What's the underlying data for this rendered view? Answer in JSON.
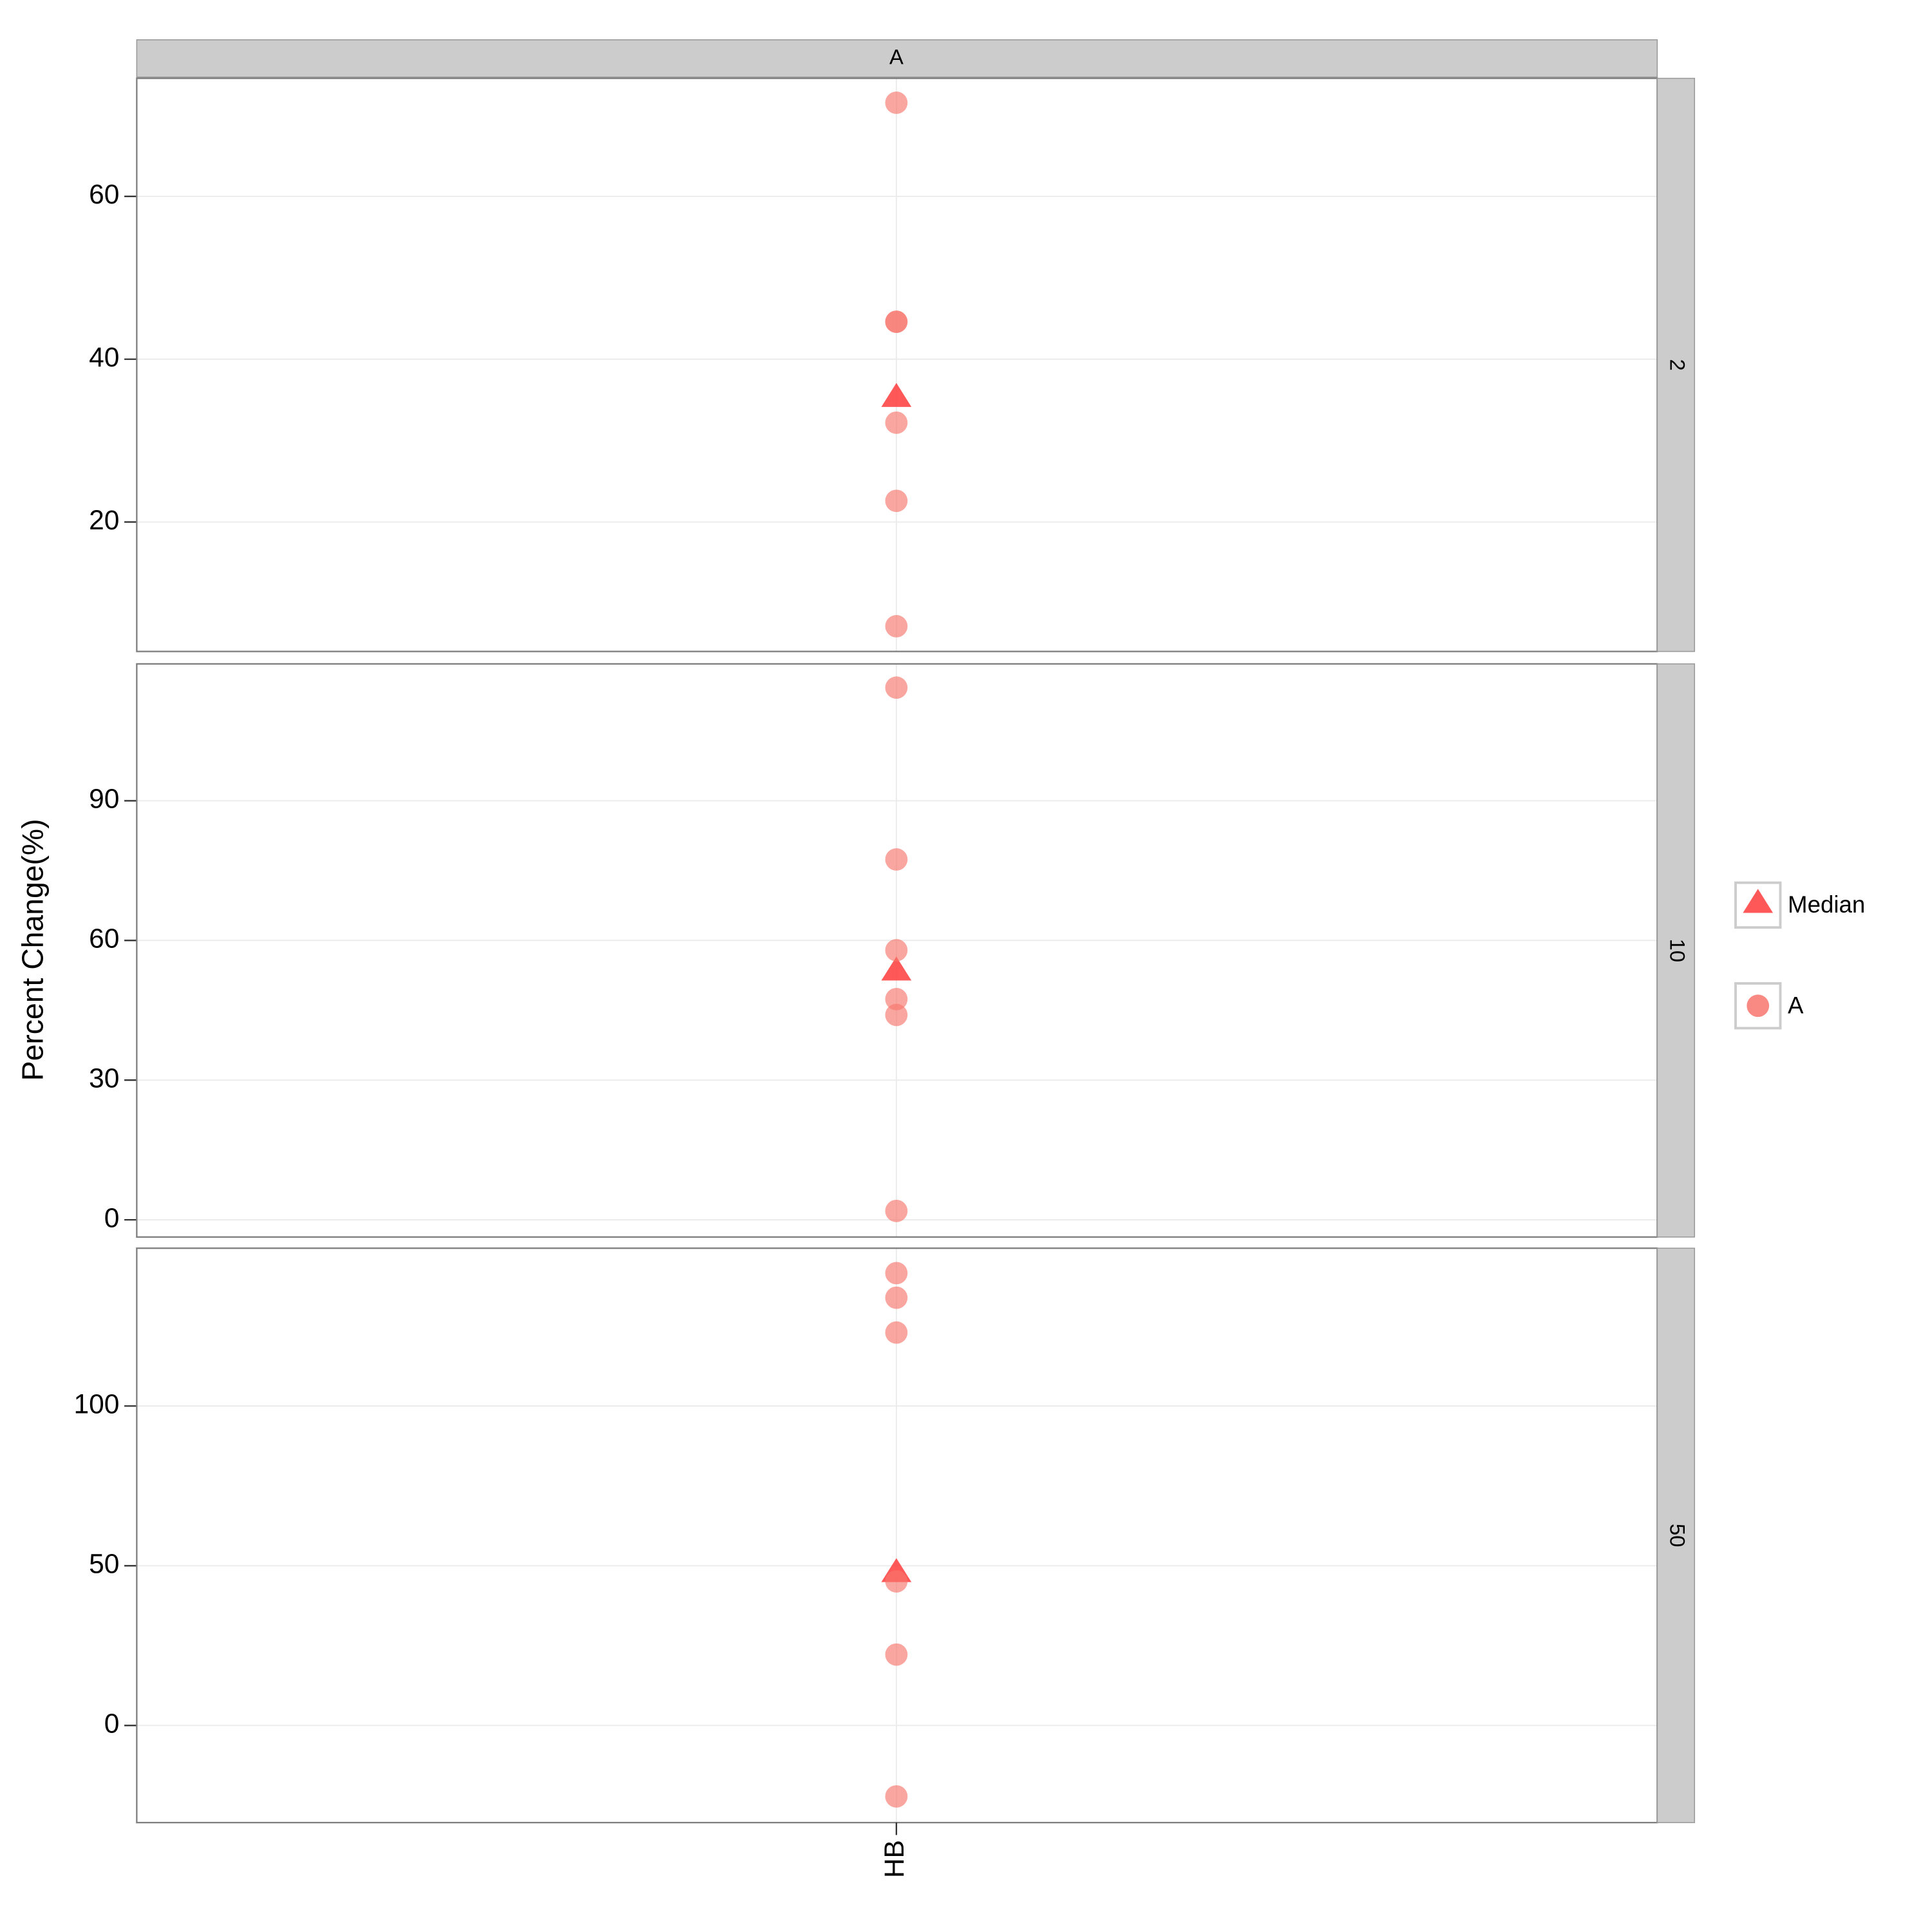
{
  "chart_data": {
    "type": "strip",
    "y_label": "Percent Change(%)",
    "facet_column": "A",
    "categories": [
      "HB"
    ],
    "panels": [
      {
        "strip": "2",
        "ylim": [
          4.1,
          74.5
        ],
        "yticks": [
          20,
          40,
          60
        ],
        "series": [
          {
            "name": "Median",
            "color": "#ff3b3b",
            "values": [
              35.4
            ]
          },
          {
            "name": "A",
            "color": "#f8766d",
            "values": [
              71.5,
              44.6,
              44.6,
              32.2,
              22.6,
              7.2
            ]
          }
        ]
      },
      {
        "strip": "10",
        "ylim": [
          -3.7,
          119.4
        ],
        "yticks": [
          0,
          30,
          60,
          90
        ],
        "series": [
          {
            "name": "Median",
            "color": "#ff3b3b",
            "values": [
              53.6
            ]
          },
          {
            "name": "A",
            "color": "#f8766d",
            "values": [
              114.3,
              77.4,
              57.9,
              47.4,
              44.0,
              1.9
            ]
          }
        ]
      },
      {
        "strip": "50",
        "ylim": [
          -30.4,
          149.4
        ],
        "yticks": [
          0,
          50,
          100
        ],
        "series": [
          {
            "name": "Median",
            "color": "#ff3b3b",
            "values": [
              48.1
            ]
          },
          {
            "name": "A",
            "color": "#f8766d",
            "values": [
              141.6,
              133.9,
              123.0,
              45.1,
              22.2,
              -22.2
            ]
          }
        ]
      }
    ]
  }
}
